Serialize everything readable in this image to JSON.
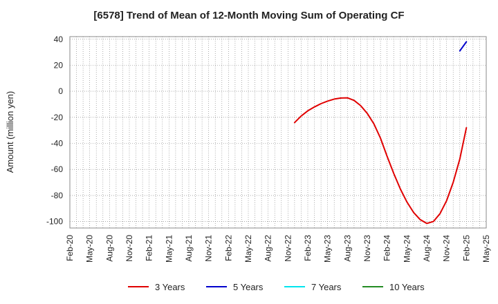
{
  "chart_data": {
    "type": "line",
    "title": "[6578]  Trend of Mean of 12-Month Moving Sum of Operating CF",
    "ylabel": "Amount (million yen)",
    "xlabel": "",
    "ylim": [
      -105,
      42
    ],
    "yticks": [
      40,
      20,
      0,
      -20,
      -40,
      -60,
      -80,
      -100
    ],
    "x_range": [
      "2020-02",
      "2025-05"
    ],
    "xticks": [
      "Feb-20",
      "May-20",
      "Aug-20",
      "Nov-20",
      "Feb-21",
      "May-21",
      "Aug-21",
      "Nov-21",
      "Feb-22",
      "May-22",
      "Aug-22",
      "Nov-22",
      "Feb-23",
      "May-23",
      "Aug-23",
      "Nov-23",
      "Feb-24",
      "May-24",
      "Aug-24",
      "Nov-24",
      "Feb-25",
      "May-25"
    ],
    "grid": true,
    "legend_position": "bottom",
    "series": [
      {
        "name": "3 Years",
        "color": "#e00000",
        "points": [
          [
            "2022-12",
            -24
          ],
          [
            "2023-01",
            -19
          ],
          [
            "2023-02",
            -15
          ],
          [
            "2023-03",
            -12
          ],
          [
            "2023-04",
            -9.5
          ],
          [
            "2023-05",
            -7.5
          ],
          [
            "2023-06",
            -6
          ],
          [
            "2023-07",
            -5.2
          ],
          [
            "2023-08",
            -5
          ],
          [
            "2023-09",
            -7
          ],
          [
            "2023-10",
            -11
          ],
          [
            "2023-11",
            -17
          ],
          [
            "2023-12",
            -25
          ],
          [
            "2024-01",
            -36
          ],
          [
            "2024-02",
            -50
          ],
          [
            "2024-03",
            -63
          ],
          [
            "2024-04",
            -75
          ],
          [
            "2024-05",
            -85
          ],
          [
            "2024-06",
            -93
          ],
          [
            "2024-07",
            -98.5
          ],
          [
            "2024-08",
            -101.5
          ],
          [
            "2024-09",
            -100
          ],
          [
            "2024-10",
            -94
          ],
          [
            "2024-11",
            -84
          ],
          [
            "2024-12",
            -70
          ],
          [
            "2025-01",
            -52
          ],
          [
            "2025-02",
            -28
          ]
        ]
      },
      {
        "name": "5 Years",
        "color": "#0000cc",
        "points": [
          [
            "2025-01",
            31
          ],
          [
            "2025-02",
            38
          ]
        ]
      },
      {
        "name": "7 Years",
        "color": "#00e5ee",
        "points": []
      },
      {
        "name": "10 Years",
        "color": "#228b22",
        "points": []
      }
    ]
  }
}
